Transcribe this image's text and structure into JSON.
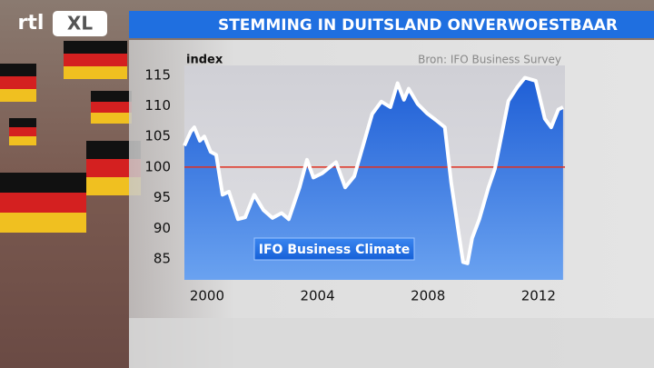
{
  "logo": {
    "left": "rtl",
    "right": "XL"
  },
  "chart_data": {
    "type": "area",
    "title": "STEMMING IN DUITSLAND ONVERWOESTBAAR",
    "source": "Bron: IFO Business Survey",
    "y_label": "index",
    "x": [
      1999.18,
      1999.41,
      1999.54,
      1999.74,
      1999.9,
      2000.13,
      2000.33,
      2000.56,
      2000.79,
      2001.12,
      2001.38,
      2001.71,
      2002.04,
      2002.37,
      2002.7,
      2002.96,
      2003.35,
      2003.62,
      2003.85,
      2004.17,
      2004.67,
      2005.0,
      2005.33,
      2005.65,
      2005.98,
      2006.31,
      2006.64,
      2006.9,
      2007.13,
      2007.3,
      2007.63,
      2007.96,
      2008.28,
      2008.61,
      2008.84,
      2009.11,
      2009.27,
      2009.43,
      2009.6,
      2009.86,
      2010.19,
      2010.42,
      2010.65,
      2010.91,
      2011.24,
      2011.51,
      2011.9,
      2012.23,
      2012.46,
      2012.72,
      2012.89
    ],
    "series": [
      {
        "name": "IFO Business Climate",
        "color": "#ffffff",
        "fill": "#3a78e0",
        "values": [
          103.5,
          105.8,
          106.5,
          104.3,
          105,
          102.5,
          102,
          95.5,
          96,
          91.5,
          91.8,
          95.5,
          93,
          91.7,
          92.5,
          91.5,
          96.7,
          101.2,
          98.3,
          99,
          100.8,
          96.7,
          98.5,
          103.5,
          108.7,
          110.7,
          109.8,
          113.7,
          111,
          112.8,
          110.3,
          108.8,
          107.7,
          106.5,
          97.5,
          89.3,
          84.5,
          84.3,
          88.4,
          91.5,
          96.7,
          99.7,
          104.9,
          110.8,
          113.1,
          114.6,
          114.1,
          107.9,
          106.5,
          109.4,
          109.8
        ]
      }
    ],
    "reference_line": {
      "value": 100,
      "color": "#e03020"
    },
    "xlim": [
      1999.18,
      2012.96
    ],
    "xticks": [
      2000,
      2004,
      2008,
      2012
    ],
    "ylim": [
      81.6,
      116.6
    ],
    "yticks": [
      85,
      90,
      95,
      100,
      105,
      110,
      115
    ],
    "grid": false
  }
}
